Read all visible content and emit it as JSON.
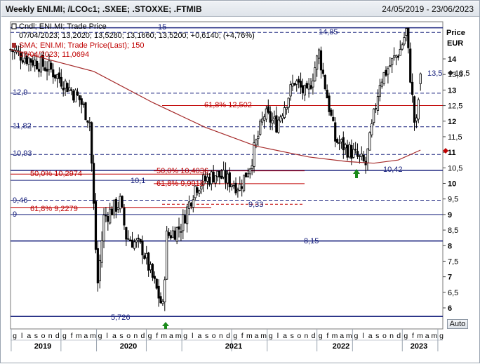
{
  "header": {
    "title": "Weekly ENI.MI; /LCOc1; .SXEE; .STOXXE; .FTMIB",
    "date_range": "24/05/2019 - 23/06/2023"
  },
  "legend": {
    "line1": "Cndl; ENI.MI; Trade Price",
    "line2": "07/04/2023; 13,2020; 13,5280; 13,1660; 13,5200; +0,6140; (+4,76%)",
    "line3": "SMA; ENI.MI; Trade Price(Last); 150",
    "line4": "07/04/2023; 11,0694"
  },
  "axis": {
    "price_label": "Price",
    "currency_label": "EUR",
    "auto_label": "Auto",
    "y_ticks": [
      "6",
      "6,5",
      "7",
      "7,5",
      "8",
      "8,5",
      "9",
      "9,5",
      "10",
      "10,5",
      "11",
      "11,5",
      "12",
      "12,5",
      "13",
      "13,5",
      "14"
    ],
    "month_labels": [
      "g",
      "l",
      "a",
      "s",
      "o",
      "n",
      "d",
      "g",
      "f",
      "m",
      "a",
      "m",
      "g",
      "l",
      "a",
      "s",
      "o",
      "n",
      "d",
      "g",
      "f",
      "m",
      "a",
      "m",
      "g",
      "l",
      "a",
      "s",
      "o",
      "n",
      "d",
      "g",
      "f",
      "m",
      "a",
      "m",
      "g",
      "l",
      "a",
      "s",
      "o",
      "n",
      "d",
      "g",
      "f",
      "m",
      "a",
      "m",
      "g",
      "l",
      "a",
      "s",
      "o",
      "n",
      "d",
      "g",
      "f",
      "m",
      "a",
      "m",
      "g"
    ],
    "year_labels": [
      "2019",
      "2020",
      "2021",
      "2022",
      "2023"
    ]
  },
  "annotations": {
    "last_price_marker": "13,5",
    "h_15": "15",
    "h_14_85": "14,85",
    "h_12_9": "12,9",
    "h_11_82": "11,82",
    "h_10_93": "10,93",
    "h_10_42": "10,42",
    "h_10_1": "10,1",
    "h_9_46": "9,46",
    "h_9": "9",
    "h_8_15": "8,15",
    "h_5_726": "5,726",
    "h_9_33": "9,33",
    "fib_a": "61,8% 12,502",
    "fib_b": "50,0% 10,2974",
    "fib_c": "61,8% 9,2279",
    "fib_d": "50,0% 10,4036",
    "fib_e": "61,8% 9,9918"
  },
  "colors": {
    "up_candle": "#ffffff",
    "down_candle": "#000000",
    "support_line": "#1a237e",
    "fib_red": "#c00000",
    "sma_line": "#a52a2a",
    "marker_green": "#1a8a1a"
  },
  "chart_data": {
    "type": "candlestick",
    "title": "Weekly ENI.MI",
    "x_start": "2019-05-24",
    "x_end": "2023-06-23",
    "ylim": [
      5.75,
      15.3
    ],
    "y_scale": "linear",
    "grid": false,
    "closes_keypoints": [
      [
        "2019-05-24",
        14.3
      ],
      [
        "2019-07-26",
        14.0
      ],
      [
        "2019-10-04",
        13.7
      ],
      [
        "2019-11-29",
        13.2
      ],
      [
        "2020-01-17",
        12.7
      ],
      [
        "2020-02-21",
        12.0
      ],
      [
        "2020-03-13",
        7.9
      ],
      [
        "2020-03-20",
        6.8
      ],
      [
        "2020-04-10",
        8.9
      ],
      [
        "2020-06-05",
        9.4
      ],
      [
        "2020-06-26",
        8.3
      ],
      [
        "2020-08-21",
        7.9
      ],
      [
        "2020-10-30",
        6.0
      ],
      [
        "2020-11-13",
        8.3
      ],
      [
        "2020-12-31",
        8.6
      ],
      [
        "2021-02-19",
        9.9
      ],
      [
        "2021-04-30",
        10.3
      ],
      [
        "2021-07-23",
        9.9
      ],
      [
        "2021-08-27",
        10.6
      ],
      [
        "2021-10-15",
        12.2
      ],
      [
        "2021-11-26",
        11.9
      ],
      [
        "2022-01-28",
        13.3
      ],
      [
        "2022-03-11",
        12.8
      ],
      [
        "2022-04-22",
        14.2
      ],
      [
        "2022-06-17",
        11.4
      ],
      [
        "2022-08-12",
        11.0
      ],
      [
        "2022-09-30",
        10.6
      ],
      [
        "2022-11-18",
        13.3
      ],
      [
        "2023-01-27",
        14.3
      ],
      [
        "2023-02-17",
        14.9
      ],
      [
        "2023-03-17",
        12.0
      ],
      [
        "2023-03-24",
        11.9
      ],
      [
        "2023-04-07",
        13.52
      ],
      [
        "2023-06-23",
        13.5
      ]
    ],
    "last_candle": {
      "date": "2023-04-07",
      "open": 13.202,
      "high": 13.528,
      "low": 13.166,
      "close": 13.52,
      "change": 0.614,
      "change_pct": 4.76
    },
    "sma": {
      "period": 150,
      "last_value": 11.0694,
      "keypoints": [
        [
          "2019-05-24",
          14.3
        ],
        [
          "2020-03-06",
          13.6
        ],
        [
          "2020-09-25",
          12.6
        ],
        [
          "2021-03-26",
          11.8
        ],
        [
          "2021-09-17",
          11.2
        ],
        [
          "2022-03-18",
          10.85
        ],
        [
          "2022-07-29",
          10.7
        ],
        [
          "2022-10-28",
          10.65
        ],
        [
          "2023-01-20",
          10.75
        ],
        [
          "2023-04-07",
          11.07
        ]
      ]
    },
    "horizontal_levels": [
      15,
      14.85,
      12.9,
      11.82,
      10.93,
      10.42,
      10.1,
      9.46,
      9,
      8.15,
      5.726
    ],
    "fibonacci_levels": [
      12.502,
      10.2974,
      9.2279,
      10.4036,
      9.9918,
      9.33
    ],
    "markers": [
      {
        "date": "2020-10-30",
        "price": 5.726,
        "kind": "up-arrow"
      },
      {
        "date": "2022-09-16",
        "price": 10.42,
        "kind": "up-arrow"
      }
    ]
  }
}
